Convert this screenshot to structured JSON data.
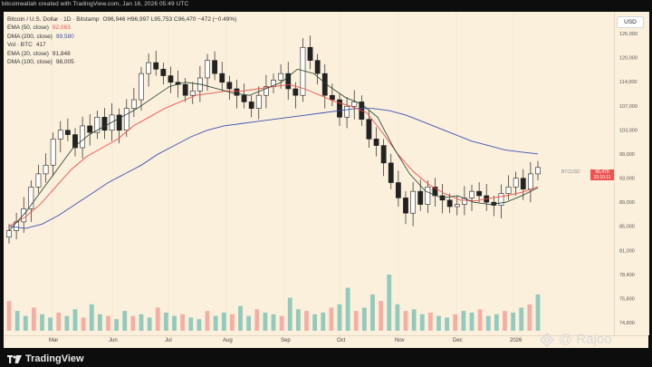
{
  "header": {
    "text": "bitcoinwallah created with TradingView.com, Jan 16, 2026 05:49 UTC"
  },
  "legend": [
    {
      "label": "Bitcoin / U.S. Dollar · 1D · Bitstamp",
      "value": "O96,946 H96,997 L95,753 C96,470 −472 (−0.49%)",
      "color": "#333333"
    },
    {
      "label": "EMA (50, close)",
      "value": "92,063",
      "color": "#ef5350"
    },
    {
      "label": "DMA (200, close)",
      "value": "99,580",
      "color": "#3f51b5"
    },
    {
      "label": "Vol · BTC",
      "value": "417",
      "color": "#333333"
    },
    {
      "label": "EMA (20, close)",
      "value": "91,848",
      "color": "#333333"
    },
    {
      "label": "DMA (100, close)",
      "value": "98,005",
      "color": "#333333"
    }
  ],
  "currency_badge": "USD",
  "price_tag": {
    "left": "BTCUSD",
    "value": "96,470",
    "sub": "10:10:11",
    "color": "#ef5350"
  },
  "bottom_bar": {
    "brand": "TradingView"
  },
  "watermark": {
    "text": "@ Rajoo"
  },
  "colors": {
    "up": "#26a69a",
    "down": "#ef5350",
    "ema50": "#ef5350",
    "ema200": "#3f51b5",
    "ema20": "#1f3d2a",
    "background": "#fbf0dc"
  },
  "chart_data": {
    "type": "candlestick",
    "symbol": "Bitcoin / U.S. Dollar",
    "interval": "1D",
    "x_labels": [
      "Mar",
      "Jun",
      "Jul",
      "Aug",
      "Sep",
      "Oct",
      "Nov",
      "Dec",
      "2026"
    ],
    "y_ticks": [
      "126,000",
      "120,000",
      "114,000",
      "107,000",
      "103,000",
      "99,000",
      "93,000",
      "89,000",
      "85,000",
      "81,000",
      "78,400",
      "75,800",
      "74,800"
    ],
    "ylim": [
      74000,
      128000
    ],
    "close_series_sampled": [
      82000,
      84000,
      87000,
      92000,
      95000,
      97000,
      103000,
      105000,
      104000,
      101000,
      106000,
      104500,
      108000,
      105000,
      108500,
      105000,
      110000,
      112000,
      118000,
      120500,
      119000,
      117500,
      116000,
      115500,
      113000,
      114000,
      117000,
      121000,
      118000,
      116000,
      114500,
      113000,
      111500,
      110000,
      113000,
      115000,
      116500,
      118000,
      114500,
      113000,
      124000,
      121000,
      118000,
      113000,
      112000,
      108000,
      110500,
      111500,
      107500,
      103000,
      101500,
      97500,
      93000,
      89500,
      86000,
      91000,
      88000,
      92000,
      90000,
      89000,
      87500,
      88000,
      89500,
      91000,
      90000,
      88500,
      87800,
      90500,
      92000,
      94000,
      91500,
      95000,
      96470
    ],
    "ema50": [
      83000,
      85000,
      88000,
      92000,
      96000,
      99000,
      101000,
      103000,
      106000,
      108000,
      110000,
      111500,
      113000,
      113500,
      114000,
      114000,
      114500,
      115000,
      115500,
      114500,
      113000,
      111500,
      110500,
      109000,
      104500,
      99500,
      95500,
      92500,
      90500,
      89000,
      88800,
      89500,
      90000,
      90800,
      92063
    ],
    "dma200": [
      83000,
      82500,
      83500,
      85500,
      88000,
      90500,
      93000,
      95000,
      97000,
      99500,
      101500,
      103500,
      105000,
      106000,
      106500,
      107000,
      107500,
      108000,
      108500,
      109000,
      109500,
      110000,
      110000,
      109500,
      108500,
      107000,
      105500,
      104000,
      102500,
      101500,
      100500,
      100000,
      99580
    ],
    "ema20": [
      82000,
      86000,
      91000,
      96000,
      101000,
      104000,
      106000,
      108000,
      110000,
      112500,
      115000,
      116000,
      115500,
      114500,
      113500,
      113000,
      114500,
      116000,
      119000,
      118000,
      115000,
      112500,
      111000,
      108000,
      101000,
      95000,
      91000,
      89500,
      90000,
      88500,
      88000,
      88500,
      90000,
      91848
    ],
    "volume_sampled": [
      18,
      12,
      9,
      14,
      10,
      8,
      11,
      9,
      13,
      8,
      16,
      10,
      9,
      7,
      12,
      9,
      10,
      8,
      14,
      11,
      9,
      10,
      8,
      7,
      12,
      9,
      11,
      10,
      15,
      9,
      13,
      11,
      10,
      9,
      20,
      13,
      12,
      10,
      11,
      14,
      16,
      26,
      12,
      14,
      22,
      18,
      34,
      16,
      12,
      13,
      10,
      11,
      9,
      8,
      10,
      12,
      11,
      13,
      9,
      10,
      12,
      11,
      14,
      16,
      22
    ],
    "last_price": 96470
  }
}
